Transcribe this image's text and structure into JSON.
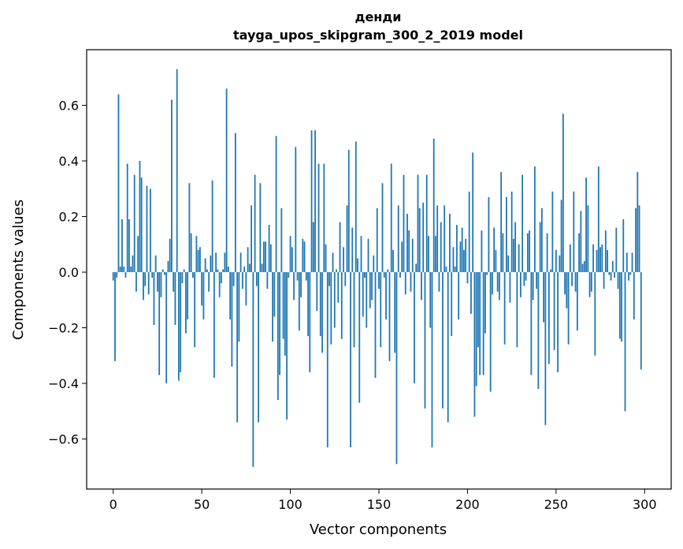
{
  "chart_data": {
    "type": "bar",
    "title": "денди",
    "subtitle": "tayga_upos_skipgram_300_2_2019 model",
    "xlabel": "Vector components",
    "ylabel": "Components values",
    "xlim": [
      -15,
      315
    ],
    "ylim": [
      -0.78,
      0.8
    ],
    "xticks": [
      0,
      50,
      100,
      150,
      200,
      250,
      300
    ],
    "yticks": [
      -0.6,
      -0.4,
      -0.2,
      0.0,
      0.2,
      0.4,
      0.6
    ],
    "ytick_labels": [
      "−0.6",
      "−0.4",
      "−0.2",
      "0.0",
      "0.2",
      "0.4",
      "0.6"
    ],
    "bar_color": "#1f77b4",
    "values": [
      -0.03,
      -0.32,
      -0.02,
      0.64,
      0.02,
      0.19,
      0.02,
      -0.02,
      0.39,
      0.19,
      0.02,
      0.06,
      0.35,
      -0.07,
      0.13,
      0.4,
      0.34,
      -0.1,
      -0.05,
      0.31,
      -0.08,
      0.3,
      -0.02,
      -0.19,
      0.06,
      -0.07,
      -0.37,
      -0.09,
      0.01,
      -0.01,
      -0.4,
      0.04,
      0.12,
      0.62,
      -0.07,
      -0.19,
      0.73,
      -0.39,
      -0.36,
      -0.04,
      0.01,
      -0.22,
      -0.17,
      0.32,
      0.14,
      -0.02,
      -0.27,
      0.13,
      0.08,
      0.09,
      -0.12,
      -0.17,
      0.05,
      0.01,
      -0.07,
      0.06,
      0.33,
      -0.38,
      0.07,
      0.01,
      -0.09,
      -0.04,
      0.01,
      0.07,
      0.66,
      0.02,
      -0.17,
      -0.34,
      -0.05,
      0.5,
      -0.54,
      -0.25,
      0.07,
      -0.06,
      0.02,
      -0.12,
      0.09,
      0.03,
      0.24,
      -0.7,
      0.35,
      -0.05,
      -0.54,
      0.32,
      0.03,
      0.11,
      0.11,
      -0.06,
      0.17,
      0.1,
      -0.25,
      -0.16,
      0.49,
      -0.46,
      -0.37,
      0.23,
      -0.24,
      -0.3,
      -0.53,
      -0.02,
      0.13,
      0.09,
      -0.1,
      0.45,
      -0.03,
      -0.21,
      -0.09,
      0.12,
      0.11,
      -0.03,
      -0.23,
      -0.36,
      0.51,
      0.18,
      0.51,
      -0.14,
      0.39,
      -0.23,
      -0.29,
      0.39,
      0.1,
      -0.63,
      -0.05,
      -0.26,
      0.07,
      -0.2,
      0.01,
      -0.11,
      0.18,
      -0.24,
      0.09,
      -0.05,
      0.24,
      0.44,
      -0.63,
      0.16,
      -0.27,
      0.47,
      0.05,
      -0.47,
      0.13,
      -0.16,
      -0.02,
      -0.2,
      0.12,
      -0.13,
      -0.1,
      0.06,
      -0.38,
      0.23,
      -0.06,
      -0.27,
      0.32,
      -0.02,
      -0.17,
      0.01,
      -0.32,
      0.39,
      0.08,
      -0.29,
      -0.69,
      0.24,
      -0.02,
      0.11,
      0.35,
      -0.08,
      0.21,
      0.15,
      -0.07,
      0.12,
      -0.4,
      0.03,
      0.35,
      0.23,
      -0.1,
      0.25,
      -0.49,
      0.35,
      0.13,
      -0.2,
      -0.63,
      0.48,
      0.13,
      0.24,
      -0.07,
      0.18,
      -0.49,
      0.24,
      0.02,
      -0.54,
      0.21,
      -0.23,
      0.09,
      0.02,
      0.17,
      -0.17,
      0.11,
      0.16,
      0.08,
      0.12,
      -0.04,
      0.29,
      -0.15,
      0.43,
      -0.52,
      -0.41,
      -0.27,
      -0.37,
      0.15,
      -0.37,
      -0.22,
      -0.01,
      0.27,
      -0.43,
      -0.08,
      0.16,
      0.08,
      -0.07,
      -0.1,
      0.36,
      0.14,
      -0.26,
      0.27,
      0.06,
      -0.11,
      0.29,
      0.12,
      0.18,
      -0.27,
      0.1,
      -0.09,
      0.35,
      -0.05,
      -0.03,
      0.14,
      0.15,
      -0.37,
      -0.1,
      0.38,
      -0.06,
      -0.42,
      0.18,
      0.23,
      -0.18,
      -0.55,
      0.14,
      -0.33,
      0.01,
      0.29,
      -0.28,
      0.08,
      -0.36,
      0.06,
      0.26,
      0.57,
      -0.08,
      -0.13,
      -0.26,
      0.1,
      -0.05,
      0.29,
      -0.07,
      -0.21,
      0.14,
      0.22,
      0.03,
      0.04,
      0.34,
      0.24,
      -0.09,
      -0.07,
      0.1,
      -0.3,
      0.08,
      0.38,
      0.09,
      0.1,
      -0.06,
      0.15,
      0.08,
      -0.01,
      -0.03,
      0.04,
      -0.02,
      0.16,
      -0.06,
      -0.24,
      -0.25,
      0.19,
      -0.5,
      0.07,
      -0.03,
      -0.01,
      0.07,
      -0.17,
      0.23,
      0.36,
      0.24,
      -0.35
    ]
  }
}
